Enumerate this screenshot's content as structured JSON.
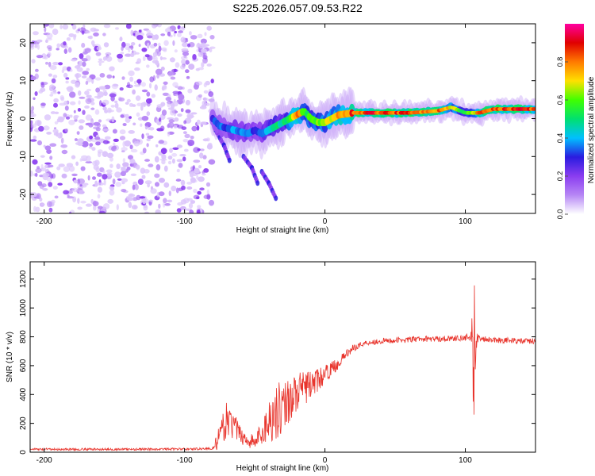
{
  "figure_title": "S225.2026.057.09.53.R22",
  "colors": {
    "snr_line": "#e8342c",
    "frame": "#000000",
    "scatter": "#9a55f0",
    "colormap": [
      "#ffffff",
      "#b787f5",
      "#8a3df0",
      "#2a1be0",
      "#00c0ff",
      "#00e070",
      "#40ff00",
      "#ffe000",
      "#ff7a00",
      "#e00000",
      "#ff00a0"
    ]
  },
  "chart_data": [
    {
      "type": "heatmap",
      "title": "",
      "xlabel": "Height of straight line (km)",
      "ylabel": "Frequency (Hz)",
      "xlim": [
        -210,
        150
      ],
      "ylim": [
        -25,
        25
      ],
      "xticks": [
        -200,
        -100,
        0,
        100
      ],
      "xtick_labels": [
        "-200",
        "-100",
        "0",
        "100"
      ],
      "yticks": [
        -20,
        -10,
        0,
        10,
        20
      ],
      "ytick_labels": [
        "-20",
        "-10",
        "0",
        "10",
        "20"
      ],
      "noise_region": {
        "x_from": -210,
        "x_to": -80
      },
      "ridge": {
        "x": [
          -80,
          -75,
          -70,
          -65,
          -60,
          -55,
          -50,
          -45,
          -40,
          -35,
          -30,
          -25,
          -20,
          -15,
          -10,
          -5,
          0,
          5,
          10,
          20,
          40,
          60,
          80,
          90,
          100,
          110,
          120,
          150
        ],
        "freq": [
          0,
          -2,
          -2.5,
          -3,
          -3.5,
          -4,
          -3,
          -4,
          -3,
          -2,
          -1,
          0,
          1,
          2,
          0,
          -1,
          -1,
          0,
          1,
          1.5,
          1.5,
          1.5,
          2,
          3,
          1.5,
          1.5,
          2.5,
          2.5
        ],
        "amplitude": [
          0.3,
          0.35,
          0.3,
          0.4,
          0.35,
          0.4,
          0.3,
          0.35,
          0.45,
          0.5,
          0.45,
          0.6,
          0.8,
          0.6,
          0.55,
          0.6,
          0.65,
          0.7,
          0.75,
          0.85,
          0.85,
          0.85,
          0.8,
          0.7,
          0.5,
          0.8,
          0.85,
          0.85
        ]
      },
      "branches": [
        {
          "x": [
            -78,
            -72,
            -68
          ],
          "freq": [
            -3,
            -7,
            -11
          ]
        },
        {
          "x": [
            -58,
            -52,
            -48
          ],
          "freq": [
            -10,
            -13,
            -17
          ]
        },
        {
          "x": [
            -45,
            -40,
            -35
          ],
          "freq": [
            -14,
            -17,
            -21
          ]
        }
      ],
      "colorbar": {
        "label": "Normalized spectral amplitude",
        "range": [
          0,
          1
        ],
        "ticks": [
          0.0,
          0.2,
          0.4,
          0.6,
          0.8
        ],
        "tick_labels": [
          "0.0",
          "0.2",
          "0.4",
          "0.6",
          "0.8"
        ]
      }
    },
    {
      "type": "line",
      "title": "",
      "xlabel": "Height of straight line (km)",
      "ylabel": "SNR (10 * v/v)",
      "xlim": [
        -210,
        150
      ],
      "ylim": [
        0,
        1320
      ],
      "xticks": [
        -200,
        -100,
        0,
        100
      ],
      "xtick_labels": [
        "-200",
        "-100",
        "0",
        "100"
      ],
      "yticks": [
        0,
        200,
        400,
        600,
        800,
        1000,
        1200
      ],
      "ytick_labels": [
        "0",
        "200",
        "400",
        "600",
        "800",
        "1000",
        "1200"
      ],
      "series": [
        {
          "name": "SNR",
          "x": [
            -210,
            -150,
            -100,
            -80,
            -75,
            -70,
            -65,
            -60,
            -55,
            -50,
            -45,
            -40,
            -35,
            -30,
            -25,
            -20,
            -15,
            -10,
            -5,
            0,
            5,
            10,
            15,
            20,
            25,
            30,
            40,
            50,
            60,
            70,
            80,
            90,
            100,
            104,
            106,
            108,
            110,
            120,
            130,
            140,
            150
          ],
          "y": [
            20,
            20,
            22,
            25,
            100,
            230,
            180,
            120,
            80,
            70,
            130,
            220,
            280,
            320,
            370,
            410,
            440,
            470,
            500,
            540,
            580,
            620,
            680,
            720,
            745,
            760,
            770,
            775,
            780,
            785,
            785,
            790,
            790,
            800,
            750,
            780,
            790,
            780,
            775,
            770,
            770
          ],
          "noise": [
            8,
            8,
            8,
            8,
            90,
            120,
            100,
            60,
            50,
            60,
            90,
            150,
            200,
            180,
            160,
            140,
            120,
            100,
            80,
            60,
            50,
            40,
            30,
            25,
            20,
            20,
            20,
            20,
            20,
            20,
            20,
            20,
            20,
            50,
            380,
            80,
            20,
            20,
            20,
            20,
            20
          ]
        }
      ]
    }
  ]
}
